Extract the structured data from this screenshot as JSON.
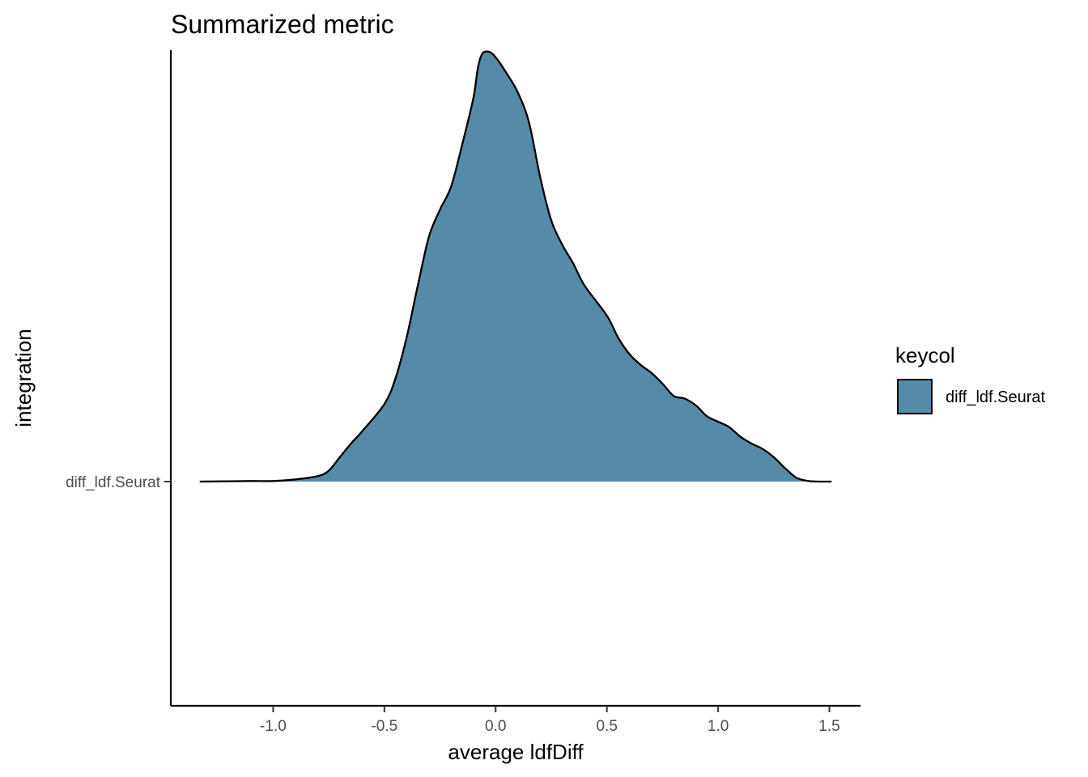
{
  "chart_data": {
    "type": "ridgeline-density",
    "title": "Summarized metric",
    "xlabel": "average ldfDiff",
    "ylabel": "integration",
    "xlim": [
      -1.46,
      1.64
    ],
    "x_ticks": [
      -1.0,
      -0.5,
      0.0,
      0.5,
      1.0,
      1.5
    ],
    "x_tick_labels": [
      "-1.0",
      "-0.5",
      "0.0",
      "0.5",
      "1.0",
      "1.5"
    ],
    "categories": [
      "diff_ldf.Seurat"
    ],
    "fill_color": "#558ba6",
    "outline_color": "#000000",
    "legend": {
      "title": "keycol",
      "placement": "right",
      "entries": [
        "diff_ldf.Seurat"
      ]
    },
    "series": [
      {
        "name": "diff_ldf.Seurat",
        "density_points": [
          [
            -1.33,
            0.0
          ],
          [
            -1.2,
            0.001
          ],
          [
            -1.1,
            0.002
          ],
          [
            -1.0,
            0.002
          ],
          [
            -0.9,
            0.008
          ],
          [
            -0.8,
            0.02
          ],
          [
            -0.75,
            0.04
          ],
          [
            -0.7,
            0.09
          ],
          [
            -0.65,
            0.14
          ],
          [
            -0.6,
            0.185
          ],
          [
            -0.5,
            0.285
          ],
          [
            -0.45,
            0.38
          ],
          [
            -0.4,
            0.53
          ],
          [
            -0.35,
            0.72
          ],
          [
            -0.3,
            0.9
          ],
          [
            -0.25,
            1.0
          ],
          [
            -0.2,
            1.085
          ],
          [
            -0.15,
            1.24
          ],
          [
            -0.1,
            1.41
          ],
          [
            -0.08,
            1.52
          ],
          [
            -0.06,
            1.573
          ],
          [
            -0.03,
            1.58
          ],
          [
            0.0,
            1.56
          ],
          [
            0.05,
            1.5
          ],
          [
            0.1,
            1.43
          ],
          [
            0.15,
            1.32
          ],
          [
            0.2,
            1.12
          ],
          [
            0.25,
            0.96
          ],
          [
            0.3,
            0.87
          ],
          [
            0.35,
            0.8
          ],
          [
            0.4,
            0.72
          ],
          [
            0.5,
            0.61
          ],
          [
            0.55,
            0.53
          ],
          [
            0.6,
            0.47
          ],
          [
            0.65,
            0.43
          ],
          [
            0.7,
            0.4
          ],
          [
            0.75,
            0.36
          ],
          [
            0.8,
            0.315
          ],
          [
            0.85,
            0.305
          ],
          [
            0.9,
            0.28
          ],
          [
            0.95,
            0.24
          ],
          [
            1.0,
            0.22
          ],
          [
            1.05,
            0.2
          ],
          [
            1.1,
            0.165
          ],
          [
            1.15,
            0.14
          ],
          [
            1.2,
            0.12
          ],
          [
            1.25,
            0.09
          ],
          [
            1.3,
            0.05
          ],
          [
            1.35,
            0.015
          ],
          [
            1.4,
            0.003
          ],
          [
            1.45,
            0.0
          ],
          [
            1.51,
            0.0
          ]
        ]
      }
    ]
  }
}
